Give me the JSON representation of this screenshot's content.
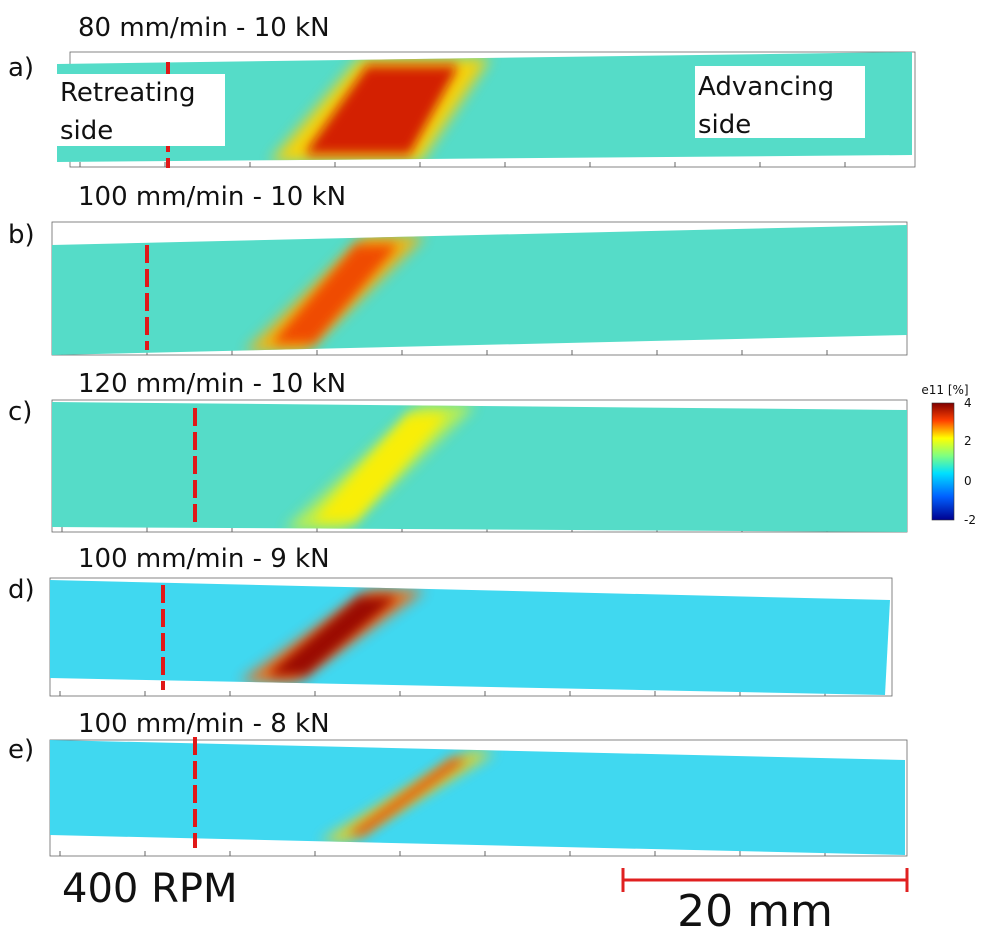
{
  "panels": [
    {
      "label": "a)",
      "title": "80 mm/min  - 10 kN"
    },
    {
      "label": "b)",
      "title": "100 mm/min  - 10 kN"
    },
    {
      "label": "c)",
      "title": "120 mm/min  - 10 kN"
    },
    {
      "label": "d)",
      "title": "100 mm/min  - 9 kN"
    },
    {
      "label": "e)",
      "title": "100 mm/min  - 8 kN"
    }
  ],
  "annotations": {
    "retreating": [
      "Retreating",
      "side"
    ],
    "advancing": [
      "Advancing",
      "side"
    ]
  },
  "colorbar": {
    "title": "e11 [%]",
    "ticks": [
      4,
      2,
      0,
      -2
    ]
  },
  "footer": {
    "rpm": "400 RPM",
    "scale": "20 mm"
  }
}
